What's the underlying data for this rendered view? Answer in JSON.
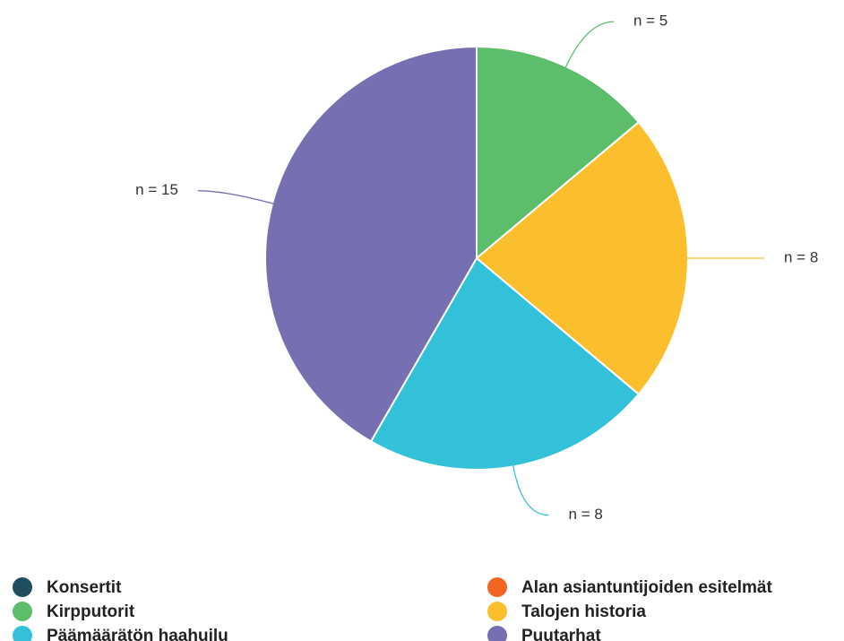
{
  "chart_data": {
    "type": "pie",
    "categories": [
      "Konsertit",
      "Alan asiantuntijoiden esitelmät",
      "Kirpputorit",
      "Talojen historia",
      "Päämäärätön haahuilu",
      "Puutarhat"
    ],
    "values": [
      0,
      0,
      5,
      8,
      8,
      15
    ],
    "value_labels": [
      null,
      null,
      "n = 5",
      "n = 8",
      "n = 8",
      "n = 15"
    ],
    "colors": [
      "#1f4e5f",
      "#f26522",
      "#5cbd6a",
      "#fbbf2e",
      "#33c1d9",
      "#7670b3"
    ],
    "legend": "bottom"
  }
}
